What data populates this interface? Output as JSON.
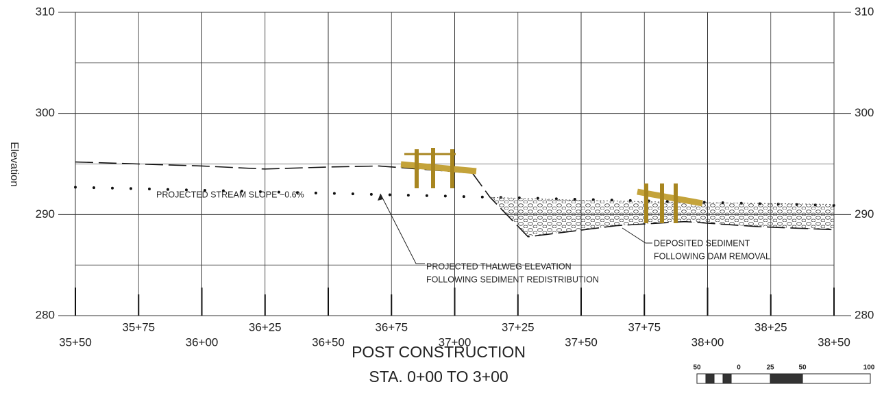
{
  "chart_data": {
    "type": "line",
    "title": "POST CONSTRUCTION",
    "subtitle": "STA. 0+00 TO 3+00",
    "y_label": "Elevation",
    "xlim": [
      3550,
      3850
    ],
    "xticks": [
      {
        "value": 3550,
        "label": "35+50"
      },
      {
        "value": 3575,
        "label": "35+75"
      },
      {
        "value": 3600,
        "label": "36+00"
      },
      {
        "value": 3625,
        "label": "36+25"
      },
      {
        "value": 3650,
        "label": "36+50"
      },
      {
        "value": 3675,
        "label": "36+75"
      },
      {
        "value": 3700,
        "label": "37+00"
      },
      {
        "value": 3725,
        "label": "37+25"
      },
      {
        "value": 3750,
        "label": "37+50"
      },
      {
        "value": 3775,
        "label": "37+75"
      },
      {
        "value": 3800,
        "label": "38+00"
      },
      {
        "value": 3825,
        "label": "38+25"
      },
      {
        "value": 3850,
        "label": "38+50"
      }
    ],
    "ylim": [
      280,
      310
    ],
    "yticks": [
      280,
      290,
      300,
      310
    ],
    "y2lim": [
      280,
      310
    ],
    "y2ticks": [
      280,
      290,
      300,
      310
    ],
    "yminorticks": [
      285,
      295,
      305
    ],
    "grid": true,
    "series": [
      {
        "x": [
          3550,
          3575,
          3600,
          3625,
          3650,
          3670,
          3707,
          3714,
          3729,
          3764,
          3791,
          3820,
          3850
        ],
        "values": [
          295.2,
          295.0,
          294.8,
          294.5,
          294.7,
          294.8,
          294.1,
          291.7,
          287.8,
          288.9,
          289.3,
          288.8,
          288.5
        ],
        "color": "#111111",
        "dash": "dashed-solid"
      },
      {
        "x": [
          3550,
          3850
        ],
        "values": [
          292.7,
          290.9
        ],
        "color": "#111111",
        "dash": "dotted"
      },
      {
        "x": [
          3714,
          3750,
          3790,
          3850
        ],
        "values": [
          291.7,
          291.4,
          291.2,
          291.0
        ],
        "color": "#555555",
        "dash": "sediment"
      }
    ],
    "annotations": [
      "PROJECTED STREAM SLOPE ~0.6%",
      "PROJECTED THALWEG ELEVATION",
      "FOLLOWING SEDIMENT REDISTRIBUTION",
      "DEPOSITED SEDIMENT",
      "FOLLOWING DAM REMOVAL"
    ],
    "scale_labels": [
      "50",
      "0",
      "25",
      "50",
      "100"
    ]
  }
}
